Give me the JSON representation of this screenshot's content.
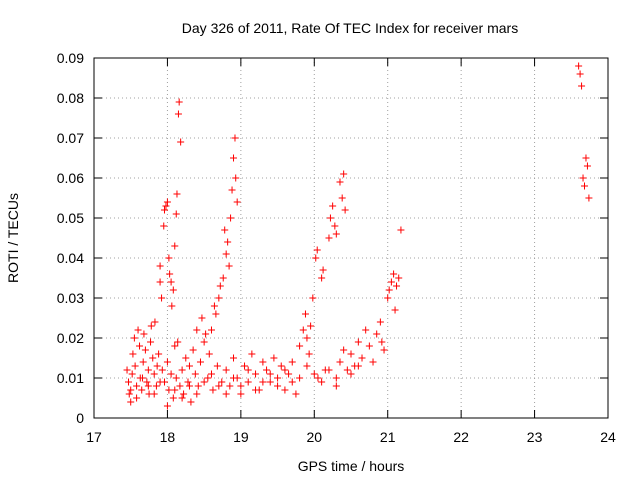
{
  "chart_data": {
    "type": "scatter",
    "title": "Day 326 of 2011, Rate Of TEC Index for receiver mars",
    "xlabel": "GPS time / hours",
    "ylabel": "ROTI / TECUs",
    "xlim": [
      17,
      24
    ],
    "ylim": [
      0,
      0.09
    ],
    "x_ticks": [
      "17",
      "18",
      "19",
      "20",
      "21",
      "22",
      "23",
      "24"
    ],
    "y_ticks": [
      "0",
      "0.01",
      "0.02",
      "0.03",
      "0.04",
      "0.05",
      "0.06",
      "0.07",
      "0.08",
      "0.09"
    ],
    "grid": true,
    "marker": "plus",
    "color": "#ff0000",
    "series": [
      {
        "points": [
          [
            17.45,
            0.012
          ],
          [
            17.47,
            0.009
          ],
          [
            17.48,
            0.006
          ],
          [
            17.5,
            0.004
          ],
          [
            17.52,
            0.011
          ],
          [
            17.53,
            0.016
          ],
          [
            17.55,
            0.02
          ],
          [
            17.56,
            0.013
          ],
          [
            17.58,
            0.008
          ],
          [
            17.6,
            0.022
          ],
          [
            17.62,
            0.018
          ],
          [
            17.63,
            0.01
          ],
          [
            17.65,
            0.007
          ],
          [
            17.67,
            0.014
          ],
          [
            17.68,
            0.021
          ],
          [
            17.7,
            0.017
          ],
          [
            17.72,
            0.009
          ],
          [
            17.74,
            0.012
          ],
          [
            17.75,
            0.006
          ],
          [
            17.77,
            0.019
          ],
          [
            17.78,
            0.023
          ],
          [
            17.8,
            0.015
          ],
          [
            17.82,
            0.011
          ],
          [
            17.83,
            0.024
          ],
          [
            17.85,
            0.008
          ],
          [
            17.86,
            0.013
          ],
          [
            17.88,
            0.016
          ],
          [
            17.9,
            0.038
          ],
          [
            17.9,
            0.034
          ],
          [
            17.92,
            0.03
          ],
          [
            17.95,
            0.048
          ],
          [
            17.96,
            0.052
          ],
          [
            17.98,
            0.053
          ],
          [
            18.0,
            0.054
          ],
          [
            18.02,
            0.04
          ],
          [
            18.03,
            0.036
          ],
          [
            18.05,
            0.034
          ],
          [
            18.06,
            0.028
          ],
          [
            18.08,
            0.032
          ],
          [
            18.1,
            0.043
          ],
          [
            18.12,
            0.051
          ],
          [
            18.13,
            0.056
          ],
          [
            18.15,
            0.076
          ],
          [
            18.16,
            0.079
          ],
          [
            18.18,
            0.069
          ],
          [
            17.93,
            0.012
          ],
          [
            17.96,
            0.009
          ],
          [
            18.0,
            0.014
          ],
          [
            18.02,
            0.007
          ],
          [
            18.05,
            0.011
          ],
          [
            18.08,
            0.005
          ],
          [
            18.1,
            0.018
          ],
          [
            18.12,
            0.01
          ],
          [
            18.14,
            0.019
          ],
          [
            18.17,
            0.008
          ],
          [
            18.2,
            0.012
          ],
          [
            18.22,
            0.006
          ],
          [
            18.25,
            0.015
          ],
          [
            18.28,
            0.009
          ],
          [
            18.3,
            0.013
          ],
          [
            18.32,
            0.004
          ],
          [
            18.35,
            0.017
          ],
          [
            18.38,
            0.011
          ],
          [
            18.4,
            0.022
          ],
          [
            18.42,
            0.008
          ],
          [
            18.45,
            0.014
          ],
          [
            18.47,
            0.025
          ],
          [
            18.5,
            0.019
          ],
          [
            18.52,
            0.021
          ],
          [
            18.55,
            0.01
          ],
          [
            18.57,
            0.016
          ],
          [
            18.6,
            0.022
          ],
          [
            18.62,
            0.007
          ],
          [
            18.64,
            0.028
          ],
          [
            18.66,
            0.026
          ],
          [
            18.68,
            0.013
          ],
          [
            18.7,
            0.03
          ],
          [
            18.72,
            0.033
          ],
          [
            18.74,
            0.009
          ],
          [
            18.76,
            0.035
          ],
          [
            18.78,
            0.047
          ],
          [
            18.8,
            0.041
          ],
          [
            18.82,
            0.044
          ],
          [
            18.84,
            0.038
          ],
          [
            18.86,
            0.05
          ],
          [
            18.88,
            0.057
          ],
          [
            18.9,
            0.065
          ],
          [
            18.92,
            0.07
          ],
          [
            18.93,
            0.06
          ],
          [
            18.95,
            0.054
          ],
          [
            18.8,
            0.012
          ],
          [
            18.85,
            0.008
          ],
          [
            18.9,
            0.015
          ],
          [
            18.95,
            0.01
          ],
          [
            19.0,
            0.006
          ],
          [
            19.05,
            0.013
          ],
          [
            19.1,
            0.009
          ],
          [
            19.15,
            0.016
          ],
          [
            19.2,
            0.011
          ],
          [
            19.25,
            0.007
          ],
          [
            19.3,
            0.014
          ],
          [
            19.35,
            0.012
          ],
          [
            19.4,
            0.009
          ],
          [
            19.45,
            0.015
          ],
          [
            19.5,
            0.01
          ],
          [
            19.55,
            0.013
          ],
          [
            19.6,
            0.007
          ],
          [
            19.65,
            0.011
          ],
          [
            19.7,
            0.014
          ],
          [
            19.75,
            0.006
          ],
          [
            19.8,
            0.018
          ],
          [
            19.85,
            0.022
          ],
          [
            19.88,
            0.026
          ],
          [
            19.9,
            0.02
          ],
          [
            19.93,
            0.016
          ],
          [
            19.95,
            0.023
          ],
          [
            19.98,
            0.03
          ],
          [
            20.02,
            0.04
          ],
          [
            20.04,
            0.042
          ],
          [
            20.05,
            0.01
          ],
          [
            20.1,
            0.035
          ],
          [
            20.12,
            0.037
          ],
          [
            20.15,
            0.012
          ],
          [
            20.2,
            0.045
          ],
          [
            20.22,
            0.05
          ],
          [
            20.25,
            0.053
          ],
          [
            20.28,
            0.048
          ],
          [
            20.3,
            0.046
          ],
          [
            20.35,
            0.059
          ],
          [
            20.38,
            0.055
          ],
          [
            20.4,
            0.061
          ],
          [
            20.42,
            0.052
          ],
          [
            20.3,
            0.008
          ],
          [
            20.35,
            0.014
          ],
          [
            20.4,
            0.017
          ],
          [
            20.45,
            0.012
          ],
          [
            20.5,
            0.016
          ],
          [
            20.55,
            0.013
          ],
          [
            20.6,
            0.019
          ],
          [
            20.65,
            0.015
          ],
          [
            20.7,
            0.022
          ],
          [
            20.75,
            0.018
          ],
          [
            20.8,
            0.014
          ],
          [
            20.85,
            0.021
          ],
          [
            20.9,
            0.024
          ],
          [
            20.92,
            0.019
          ],
          [
            20.95,
            0.017
          ],
          [
            21.0,
            0.03
          ],
          [
            21.02,
            0.032
          ],
          [
            21.05,
            0.034
          ],
          [
            21.08,
            0.036
          ],
          [
            21.1,
            0.027
          ],
          [
            21.12,
            0.033
          ],
          [
            21.15,
            0.035
          ],
          [
            21.18,
            0.047
          ],
          [
            23.6,
            0.088
          ],
          [
            23.62,
            0.086
          ],
          [
            23.64,
            0.083
          ],
          [
            23.66,
            0.06
          ],
          [
            23.68,
            0.058
          ],
          [
            23.7,
            0.065
          ],
          [
            23.72,
            0.063
          ],
          [
            23.74,
            0.055
          ],
          [
            17.5,
            0.007
          ],
          [
            17.58,
            0.005
          ],
          [
            17.66,
            0.01
          ],
          [
            17.74,
            0.008
          ],
          [
            17.82,
            0.006
          ],
          [
            17.9,
            0.009
          ],
          [
            18.0,
            0.003
          ],
          [
            18.1,
            0.007
          ],
          [
            18.2,
            0.005
          ],
          [
            18.3,
            0.008
          ],
          [
            18.4,
            0.006
          ],
          [
            18.5,
            0.009
          ],
          [
            18.6,
            0.011
          ],
          [
            18.7,
            0.008
          ],
          [
            18.8,
            0.006
          ],
          [
            18.9,
            0.01
          ],
          [
            19.0,
            0.008
          ],
          [
            19.1,
            0.012
          ],
          [
            19.2,
            0.007
          ],
          [
            19.3,
            0.009
          ],
          [
            19.4,
            0.011
          ],
          [
            19.5,
            0.008
          ],
          [
            19.6,
            0.012
          ],
          [
            19.7,
            0.009
          ],
          [
            19.8,
            0.01
          ],
          [
            19.9,
            0.013
          ],
          [
            20.0,
            0.011
          ],
          [
            20.1,
            0.009
          ],
          [
            20.2,
            0.012
          ],
          [
            20.3,
            0.01
          ],
          [
            20.5,
            0.011
          ],
          [
            20.6,
            0.013
          ]
        ]
      }
    ]
  }
}
